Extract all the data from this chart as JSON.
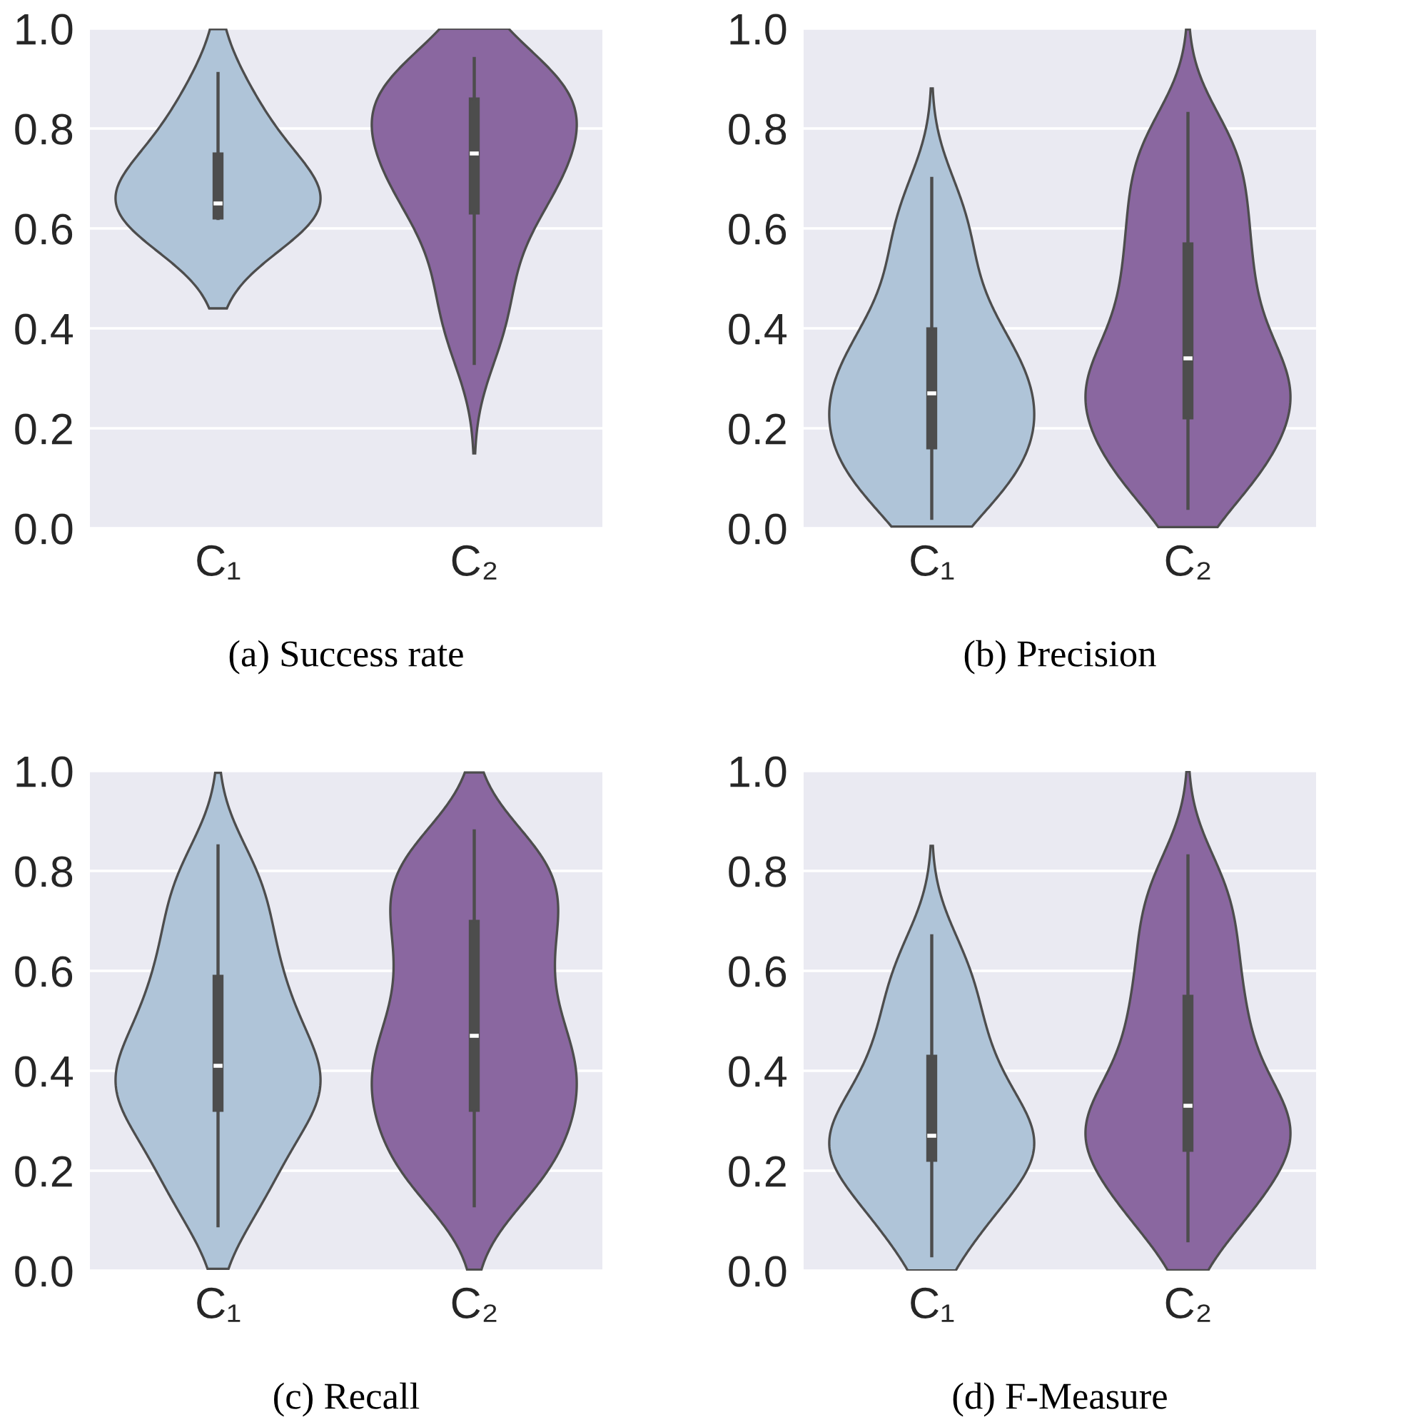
{
  "chart_data": [
    {
      "type": "box",
      "title": "(a) Success rate",
      "categories": [
        "C₁",
        "C₂"
      ],
      "colors": [
        "#4d4d4d",
        "#4d4d4d"
      ],
      "ylim": [
        0,
        1
      ],
      "yticks": [
        {
          "value": 0,
          "label": "0.0"
        },
        {
          "value": 0.2,
          "label": "0.2"
        },
        {
          "value": 0.4,
          "label": "0.4"
        },
        {
          "value": 0.6,
          "label": "0.6"
        },
        {
          "value": 0.8,
          "label": "0.8"
        },
        {
          "value": 1,
          "label": "1.0"
        }
      ],
      "grid": "y",
      "boxes": [
        {
          "low": 0.62,
          "q1": 0.62,
          "median": 0.65,
          "q3": 0.75,
          "high": 0.91
        },
        {
          "low": 0.33,
          "q1": 0.63,
          "median": 0.75,
          "q3": 0.86,
          "high": 0.94
        }
      ]
    },
    {
      "type": "box",
      "title": "(b) Precision",
      "categories": [
        "C₁",
        "C₂"
      ],
      "colors": [
        "#4d4d4d",
        "#4d4d4d"
      ],
      "ylim": [
        0,
        1
      ],
      "yticks": [
        {
          "value": 0,
          "label": "0.0"
        },
        {
          "value": 0.2,
          "label": "0.2"
        },
        {
          "value": 0.4,
          "label": "0.4"
        },
        {
          "value": 0.6,
          "label": "0.6"
        },
        {
          "value": 0.8,
          "label": "0.8"
        },
        {
          "value": 1,
          "label": "1.0"
        }
      ],
      "grid": "y",
      "boxes": [
        {
          "low": 0.02,
          "q1": 0.16,
          "median": 0.27,
          "q3": 0.4,
          "high": 0.7
        },
        {
          "low": 0.04,
          "q1": 0.22,
          "median": 0.34,
          "q3": 0.57,
          "high": 0.83
        }
      ]
    },
    {
      "type": "box",
      "title": "(c) Recall",
      "categories": [
        "C₁",
        "C₂"
      ],
      "colors": [
        "#4d4d4d",
        "#4d4d4d"
      ],
      "ylim": [
        0,
        1
      ],
      "yticks": [
        {
          "value": 0,
          "label": "0.0"
        },
        {
          "value": 0.2,
          "label": "0.2"
        },
        {
          "value": 0.4,
          "label": "0.4"
        },
        {
          "value": 0.6,
          "label": "0.6"
        },
        {
          "value": 0.8,
          "label": "0.8"
        },
        {
          "value": 1,
          "label": "1.0"
        }
      ],
      "grid": "y",
      "boxes": [
        {
          "low": 0.09,
          "q1": 0.32,
          "median": 0.41,
          "q3": 0.59,
          "high": 0.85
        },
        {
          "low": 0.13,
          "q1": 0.32,
          "median": 0.47,
          "q3": 0.7,
          "high": 0.88
        }
      ]
    },
    {
      "type": "box",
      "title": "(d) F-Measure",
      "categories": [
        "C₁",
        "C₂"
      ],
      "colors": [
        "#4d4d4d",
        "#4d4d4d"
      ],
      "ylim": [
        0,
        1
      ],
      "yticks": [
        {
          "value": 0,
          "label": "0.0"
        },
        {
          "value": 0.2,
          "label": "0.2"
        },
        {
          "value": 0.4,
          "label": "0.4"
        },
        {
          "value": 0.6,
          "label": "0.6"
        },
        {
          "value": 0.8,
          "label": "0.8"
        },
        {
          "value": 1,
          "label": "1.0"
        }
      ],
      "grid": "y",
      "boxes": [
        {
          "low": 0.03,
          "q1": 0.22,
          "median": 0.27,
          "q3": 0.43,
          "high": 0.67
        },
        {
          "low": 0.06,
          "q1": 0.24,
          "median": 0.33,
          "q3": 0.55,
          "high": 0.83
        }
      ]
    }
  ]
}
